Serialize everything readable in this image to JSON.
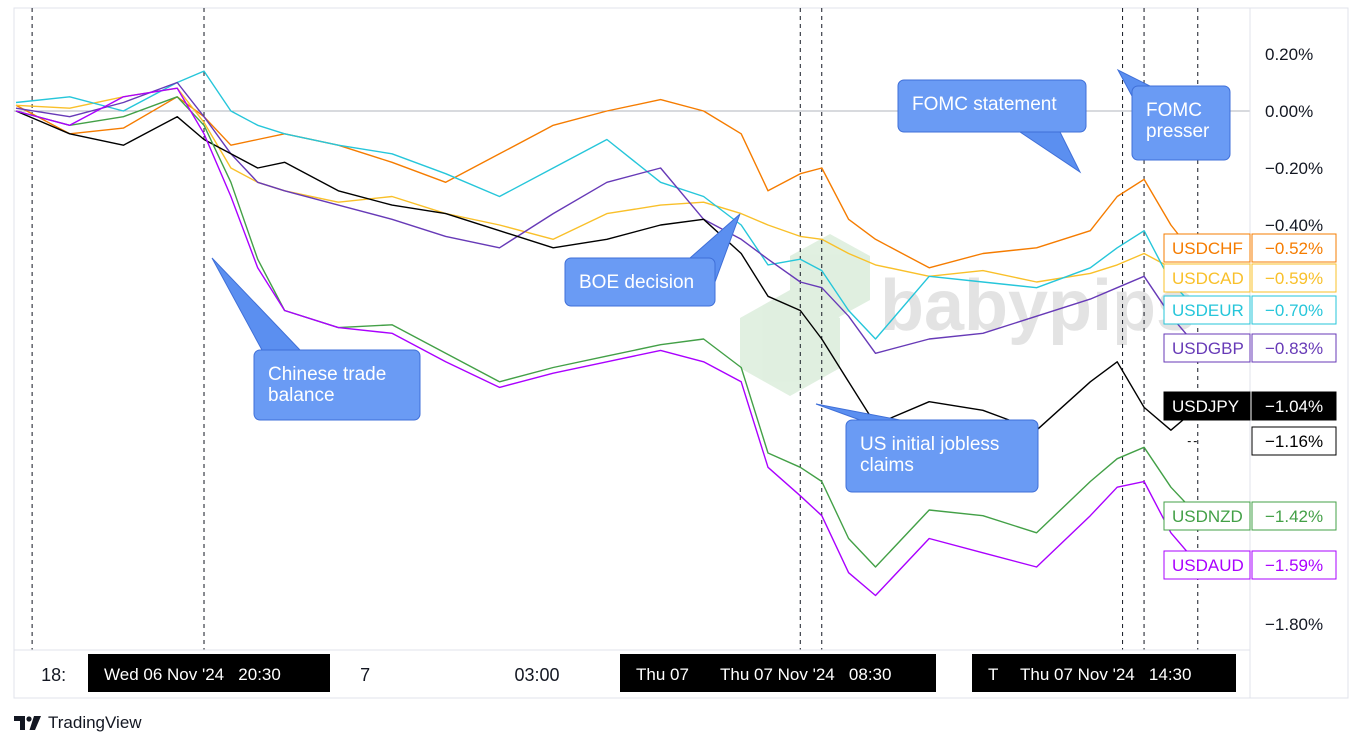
{
  "chart_data": {
    "type": "line",
    "watermark": "babypips",
    "y_ticks": [
      "0.20%",
      "0.00%",
      "−0.20%",
      "−0.40%",
      "−1.80%"
    ],
    "ylim": [
      -1.85,
      0.3
    ],
    "x_ticks": [
      {
        "label": "18:",
        "t": -2.3
      },
      {
        "label": "7",
        "t": 3.5
      },
      {
        "label": "03:00",
        "t": 6.7
      }
    ],
    "time_flags": [
      {
        "label": "Wed 06 Nov '24   20:30",
        "t": 0.5
      },
      {
        "label": "Thu 07",
        "t": 8.4
      },
      {
        "label": "Thu 07 Nov '24   08:30",
        "t": 12.0
      },
      {
        "label": "T",
        "t": 16.0
      },
      {
        "label": "Thu 07 Nov '24   14:30",
        "t": 18.0
      }
    ],
    "event_lines_t": [
      -2.7,
      0.5,
      11.6,
      12.0,
      17.6,
      18.0,
      19.0
    ],
    "callouts": [
      {
        "text": [
          "Chinese trade",
          "balance"
        ]
      },
      {
        "text": [
          "BOE decision"
        ]
      },
      {
        "text": [
          "US initial jobless",
          "claims"
        ]
      },
      {
        "text": [
          "FOMC statement"
        ]
      },
      {
        "text": [
          "FOMC",
          "presser"
        ]
      }
    ],
    "series": [
      {
        "name": "USDCHF",
        "last": "−0.52%",
        "color": "#f57c00",
        "x": [
          -3.0,
          -2.0,
          -1.0,
          0.0,
          0.5,
          1.0,
          1.5,
          2.0,
          3.0,
          4.0,
          5.0,
          6.0,
          7.0,
          8.0,
          9.0,
          9.8,
          10.5,
          11.0,
          11.6,
          12.0,
          12.5,
          13.0,
          14.0,
          15.0,
          16.0,
          17.0,
          17.5,
          18.0,
          18.5,
          19.0
        ],
        "y": [
          0.02,
          -0.08,
          -0.06,
          0.05,
          -0.02,
          -0.12,
          -0.1,
          -0.08,
          -0.12,
          -0.18,
          -0.25,
          -0.15,
          -0.05,
          0.0,
          0.04,
          0.0,
          -0.08,
          -0.28,
          -0.22,
          -0.2,
          -0.38,
          -0.45,
          -0.55,
          -0.5,
          -0.48,
          -0.42,
          -0.3,
          -0.24,
          -0.4,
          -0.52
        ]
      },
      {
        "name": "USDCAD",
        "last": "−0.59%",
        "color": "#f9c02a",
        "x": [
          -3.0,
          -2.0,
          -1.0,
          0.0,
          0.5,
          1.0,
          1.5,
          2.0,
          3.0,
          4.0,
          5.0,
          6.0,
          7.0,
          8.0,
          9.0,
          9.8,
          10.5,
          11.0,
          11.6,
          12.0,
          12.5,
          13.0,
          14.0,
          15.0,
          16.0,
          17.0,
          17.5,
          18.0,
          18.5,
          19.0
        ],
        "y": [
          0.02,
          0.01,
          0.05,
          0.08,
          -0.04,
          -0.2,
          -0.25,
          -0.28,
          -0.32,
          -0.3,
          -0.36,
          -0.4,
          -0.45,
          -0.36,
          -0.33,
          -0.32,
          -0.36,
          -0.4,
          -0.44,
          -0.45,
          -0.5,
          -0.54,
          -0.58,
          -0.56,
          -0.6,
          -0.57,
          -0.54,
          -0.5,
          -0.55,
          -0.59
        ]
      },
      {
        "name": "USDEUR",
        "last": "−0.70%",
        "color": "#26c6da",
        "x": [
          -3.0,
          -2.0,
          -1.0,
          0.0,
          0.5,
          1.0,
          1.5,
          2.0,
          3.0,
          4.0,
          5.0,
          6.0,
          7.0,
          8.0,
          9.0,
          9.8,
          10.5,
          11.0,
          11.6,
          12.0,
          12.5,
          13.0,
          14.0,
          15.0,
          16.0,
          17.0,
          17.5,
          18.0,
          18.5,
          19.0
        ],
        "y": [
          0.03,
          0.05,
          0.0,
          0.1,
          0.14,
          0.0,
          -0.05,
          -0.08,
          -0.12,
          -0.15,
          -0.22,
          -0.3,
          -0.2,
          -0.1,
          -0.25,
          -0.3,
          -0.4,
          -0.54,
          -0.52,
          -0.56,
          -0.7,
          -0.8,
          -0.58,
          -0.6,
          -0.62,
          -0.55,
          -0.48,
          -0.42,
          -0.6,
          -0.7
        ]
      },
      {
        "name": "USDGBP",
        "last": "−0.83%",
        "color": "#673ab7",
        "x": [
          -3.0,
          -2.0,
          -1.0,
          0.0,
          0.5,
          1.0,
          1.5,
          2.0,
          3.0,
          4.0,
          5.0,
          6.0,
          7.0,
          8.0,
          9.0,
          9.8,
          10.5,
          11.0,
          11.6,
          12.0,
          12.5,
          13.0,
          14.0,
          15.0,
          16.0,
          17.0,
          17.5,
          18.0,
          18.5,
          19.0
        ],
        "y": [
          0.01,
          -0.02,
          0.03,
          0.1,
          -0.02,
          -0.15,
          -0.25,
          -0.28,
          -0.33,
          -0.38,
          -0.44,
          -0.48,
          -0.36,
          -0.25,
          -0.2,
          -0.38,
          -0.45,
          -0.52,
          -0.6,
          -0.62,
          -0.72,
          -0.85,
          -0.8,
          -0.78,
          -0.72,
          -0.66,
          -0.62,
          -0.58,
          -0.72,
          -0.83
        ]
      },
      {
        "name": "USDJPY",
        "last": "−1.04%",
        "color": "#000000",
        "x": [
          -3.0,
          -2.0,
          -1.0,
          0.0,
          0.5,
          1.0,
          1.5,
          2.0,
          3.0,
          4.0,
          5.0,
          6.0,
          7.0,
          8.0,
          9.0,
          9.8,
          10.5,
          11.0,
          11.6,
          12.0,
          12.5,
          13.0,
          14.0,
          15.0,
          16.0,
          17.0,
          17.5,
          18.0,
          18.5,
          19.0
        ],
        "y": [
          0.0,
          -0.08,
          -0.12,
          -0.02,
          -0.1,
          -0.15,
          -0.2,
          -0.18,
          -0.28,
          -0.33,
          -0.36,
          -0.42,
          -0.48,
          -0.45,
          -0.4,
          -0.38,
          -0.5,
          -0.65,
          -0.7,
          -0.8,
          -0.95,
          -1.1,
          -1.02,
          -1.05,
          -1.12,
          -0.95,
          -0.88,
          -1.04,
          -1.12,
          -1.04
        ]
      },
      {
        "name": "",
        "last": "−1.16%",
        "color": "#000000",
        "dashed": true,
        "x": [
          19.0
        ],
        "y": [
          -1.16
        ]
      },
      {
        "name": "USDNZD",
        "last": "−1.42%",
        "color": "#43a047",
        "x": [
          -3.0,
          -2.0,
          -1.0,
          0.0,
          0.5,
          1.0,
          1.5,
          2.0,
          3.0,
          4.0,
          5.0,
          6.0,
          7.0,
          8.0,
          9.0,
          9.8,
          10.5,
          11.0,
          11.6,
          12.0,
          12.5,
          13.0,
          14.0,
          15.0,
          16.0,
          17.0,
          17.5,
          18.0,
          18.5,
          19.0
        ],
        "y": [
          0.0,
          -0.05,
          -0.02,
          0.05,
          -0.05,
          -0.25,
          -0.52,
          -0.7,
          -0.76,
          -0.75,
          -0.85,
          -0.95,
          -0.9,
          -0.86,
          -0.82,
          -0.8,
          -0.9,
          -1.2,
          -1.25,
          -1.3,
          -1.5,
          -1.6,
          -1.4,
          -1.42,
          -1.48,
          -1.3,
          -1.22,
          -1.18,
          -1.32,
          -1.42
        ]
      },
      {
        "name": "USDAUD",
        "last": "−1.59%",
        "color": "#aa00ff",
        "x": [
          -3.0,
          -2.0,
          -1.0,
          0.0,
          0.5,
          1.0,
          1.5,
          2.0,
          3.0,
          4.0,
          5.0,
          6.0,
          7.0,
          8.0,
          9.0,
          9.8,
          10.5,
          11.0,
          11.6,
          12.0,
          12.5,
          13.0,
          14.0,
          15.0,
          16.0,
          17.0,
          17.5,
          18.0,
          18.5,
          19.0
        ],
        "y": [
          0.0,
          -0.05,
          0.05,
          0.08,
          -0.08,
          -0.3,
          -0.55,
          -0.7,
          -0.76,
          -0.78,
          -0.88,
          -0.97,
          -0.92,
          -0.88,
          -0.84,
          -0.88,
          -0.95,
          -1.25,
          -1.35,
          -1.42,
          -1.62,
          -1.7,
          -1.5,
          -1.55,
          -1.6,
          -1.42,
          -1.32,
          -1.3,
          -1.48,
          -1.59
        ]
      }
    ]
  },
  "footer": {
    "brand": "TradingView"
  }
}
